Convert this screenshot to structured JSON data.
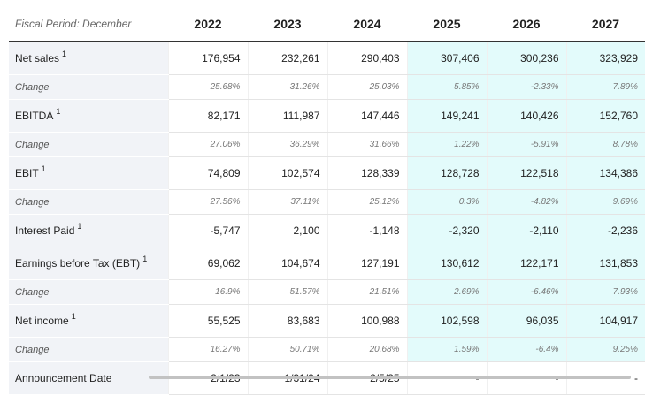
{
  "header": {
    "period_label": "Fiscal Period: December",
    "years": [
      "2022",
      "2023",
      "2024",
      "2025",
      "2026",
      "2027"
    ]
  },
  "rows": [
    {
      "label": "Net sales",
      "note": "1",
      "kind": "main",
      "values": [
        "176,954",
        "232,261",
        "290,403",
        "307,406",
        "300,236",
        "323,929"
      ]
    },
    {
      "label": "Change",
      "note": "",
      "kind": "chg",
      "values": [
        "25.68%",
        "31.26%",
        "25.03%",
        "5.85%",
        "-2.33%",
        "7.89%"
      ]
    },
    {
      "label": "EBITDA",
      "note": "1",
      "kind": "main",
      "values": [
        "82,171",
        "111,987",
        "147,446",
        "149,241",
        "140,426",
        "152,760"
      ]
    },
    {
      "label": "Change",
      "note": "",
      "kind": "chg",
      "values": [
        "27.06%",
        "36.29%",
        "31.66%",
        "1.22%",
        "-5.91%",
        "8.78%"
      ]
    },
    {
      "label": "EBIT",
      "note": "1",
      "kind": "main",
      "values": [
        "74,809",
        "102,574",
        "128,339",
        "128,728",
        "122,518",
        "134,386"
      ]
    },
    {
      "label": "Change",
      "note": "",
      "kind": "chg",
      "values": [
        "27.56%",
        "37.11%",
        "25.12%",
        "0.3%",
        "-4.82%",
        "9.69%"
      ]
    },
    {
      "label": "Interest Paid",
      "note": "1",
      "kind": "main",
      "values": [
        "-5,747",
        "2,100",
        "-1,148",
        "-2,320",
        "-2,110",
        "-2,236"
      ]
    },
    {
      "label": "Earnings before Tax (EBT)",
      "note": "1",
      "kind": "main",
      "values": [
        "69,062",
        "104,674",
        "127,191",
        "130,612",
        "122,171",
        "131,853"
      ]
    },
    {
      "label": "Change",
      "note": "",
      "kind": "chg",
      "values": [
        "16.9%",
        "51.57%",
        "21.51%",
        "2.69%",
        "-6.46%",
        "7.93%"
      ]
    },
    {
      "label": "Net income",
      "note": "1",
      "kind": "main",
      "values": [
        "55,525",
        "83,683",
        "100,988",
        "102,598",
        "96,035",
        "104,917"
      ]
    },
    {
      "label": "Change",
      "note": "",
      "kind": "chg",
      "values": [
        "16.27%",
        "50.71%",
        "20.68%",
        "1.59%",
        "-6.4%",
        "9.25%"
      ]
    },
    {
      "label": "Announcement Date",
      "note": "",
      "kind": "main last",
      "values": [
        "2/1/23",
        "1/31/24",
        "2/5/25",
        "-",
        "-",
        "-"
      ]
    }
  ],
  "colors": {
    "forecast_bg": "#e3fbfb",
    "label_bg": "#f1f3f7",
    "header_rule": "#333333"
  }
}
